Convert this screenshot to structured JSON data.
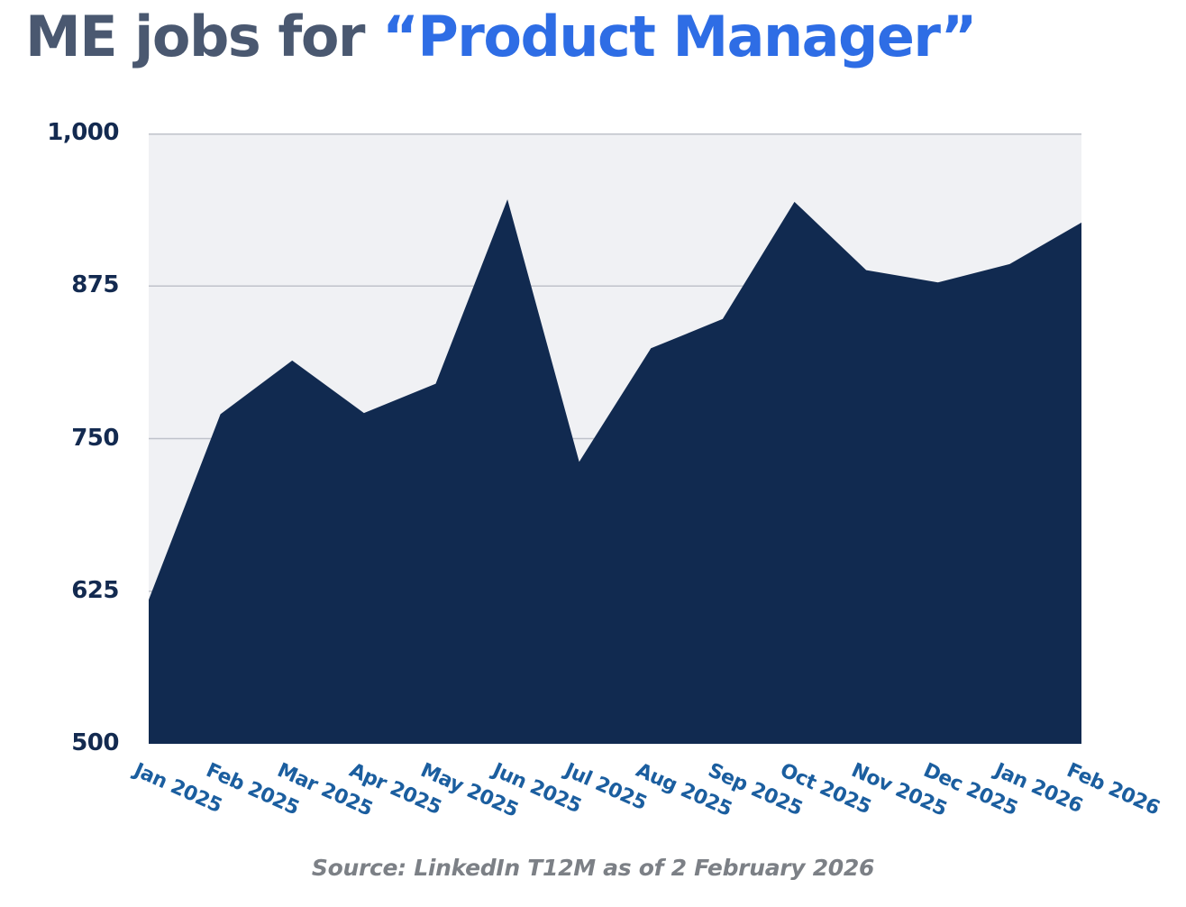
{
  "title": {
    "prefix": "ME jobs for ",
    "highlight": "“Product Manager”"
  },
  "source": {
    "text": "Source: LinkedIn T12M as of 2 February 2026"
  },
  "colors": {
    "title_dark": "#4a5870",
    "title_blue": "#2e6de5",
    "area_fill": "#112a50",
    "plot_bg": "#f0f1f4",
    "gridline": "#bfc2ca",
    "x_label": "#1b5e9f",
    "y_label": "#132a50",
    "source_gray": "#7c8086"
  },
  "chart_data": {
    "type": "area",
    "title": "ME jobs for “Product Manager”",
    "xlabel": "",
    "ylabel": "",
    "ylim": [
      500,
      1000
    ],
    "grid": true,
    "legend": false,
    "categories": [
      "Jan 2025",
      "Feb 2025",
      "Mar 2025",
      "Apr 2025",
      "May 2025",
      "Jun 2025",
      "Jul 2025",
      "Aug 2025",
      "Sep 2025",
      "Oct 2025",
      "Nov 2025",
      "Dec 2025",
      "Jan 2026",
      "Feb 2026"
    ],
    "values": [
      618,
      770,
      814,
      771,
      795,
      946,
      731,
      824,
      848,
      944,
      888,
      878,
      893,
      927
    ],
    "y_ticks": [
      {
        "label": "1,000",
        "value": 1000
      },
      {
        "label": "875",
        "value": 875
      },
      {
        "label": "750",
        "value": 750
      },
      {
        "label": "625",
        "value": 625
      },
      {
        "label": "500",
        "value": 500
      }
    ]
  }
}
